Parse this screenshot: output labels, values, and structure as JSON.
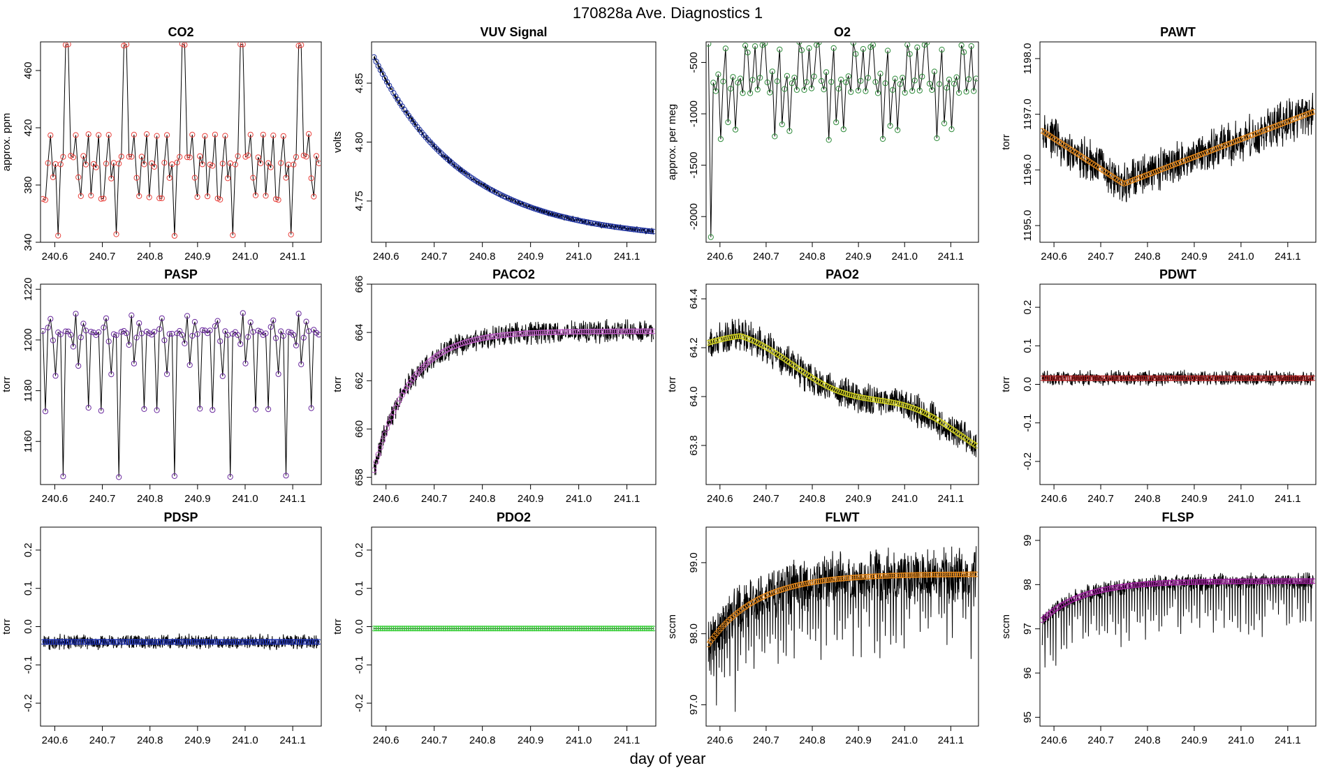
{
  "figure": {
    "title": "170828a   Ave. Diagnostics 1",
    "xlabel": "day of year"
  },
  "chart_data": [
    {
      "type": "line",
      "title": "CO2",
      "ylabel": "approx. ppm",
      "color": "#e8413c",
      "xlim": [
        240.57,
        241.16
      ],
      "ylim": [
        340,
        480
      ],
      "yticks": [
        340,
        380,
        420,
        460
      ],
      "ytick_labels": [
        "340",
        "380",
        "420",
        "460"
      ],
      "xticks": [
        240.6,
        240.7,
        240.8,
        240.9,
        241.0,
        241.1
      ],
      "xtick_labels": [
        "240.6",
        "240.7",
        "240.8",
        "240.9",
        "241.0",
        "241.1"
      ],
      "pattern": "co2"
    },
    {
      "type": "line",
      "title": "VUV Signal",
      "ylabel": "volts",
      "color": "#1a2e9e",
      "xlim": [
        240.57,
        241.16
      ],
      "ylim": [
        4.715,
        4.885
      ],
      "yticks": [
        4.75,
        4.8,
        4.85
      ],
      "ytick_labels": [
        "4.75",
        "4.80",
        "4.85"
      ],
      "xticks": [
        240.6,
        240.7,
        240.8,
        240.9,
        241.0,
        241.1
      ],
      "xtick_labels": [
        "240.6",
        "240.7",
        "240.8",
        "240.9",
        "241.0",
        "241.1"
      ],
      "pattern": "decay",
      "start": 4.872,
      "end": 4.722,
      "noise": 0.003
    },
    {
      "type": "line",
      "title": "O2",
      "ylabel": "approx. per meg",
      "color": "#2e8b3a",
      "xlim": [
        240.57,
        241.16
      ],
      "ylim": [
        -2250,
        -300
      ],
      "yticks": [
        -2000,
        -1500,
        -1000,
        -500
      ],
      "ytick_labels": [
        "-2000",
        "-1500",
        "-1000",
        "-500"
      ],
      "xticks": [
        240.6,
        240.7,
        240.8,
        240.9,
        241.0,
        241.1
      ],
      "xtick_labels": [
        "240.6",
        "240.7",
        "240.8",
        "240.9",
        "241.0",
        "241.1"
      ],
      "pattern": "o2"
    },
    {
      "type": "line",
      "title": "PAWT",
      "ylabel": "torr",
      "color": "#e8891a",
      "xlim": [
        240.57,
        241.16
      ],
      "ylim": [
        1194.7,
        1198.3
      ],
      "yticks": [
        1195.0,
        1196.0,
        1197.0,
        1198.0
      ],
      "ytick_labels": [
        "1195.0",
        "1196.0",
        "1197.0",
        "1198.0"
      ],
      "xticks": [
        240.6,
        240.7,
        240.8,
        240.9,
        241.0,
        241.1
      ],
      "xtick_labels": [
        "240.6",
        "240.7",
        "240.8",
        "240.9",
        "241.0",
        "241.1"
      ],
      "pattern": "pawt",
      "noise": 0.45
    },
    {
      "type": "line",
      "title": "PASP",
      "ylabel": "torr",
      "color": "#6a2a9e",
      "xlim": [
        240.57,
        241.16
      ],
      "ylim": [
        1143,
        1222
      ],
      "yticks": [
        1160,
        1180,
        1200,
        1220
      ],
      "ytick_labels": [
        "1160",
        "1180",
        "1200",
        "1220"
      ],
      "xticks": [
        240.6,
        240.7,
        240.8,
        240.9,
        241.0,
        241.1
      ],
      "xtick_labels": [
        "240.6",
        "240.7",
        "240.8",
        "240.9",
        "241.0",
        "241.1"
      ],
      "pattern": "pasp"
    },
    {
      "type": "line",
      "title": "PACO2",
      "ylabel": "torr",
      "color": "#c060c8",
      "xlim": [
        240.57,
        241.16
      ],
      "ylim": [
        657.7,
        666.0
      ],
      "yticks": [
        658,
        660,
        662,
        664,
        666
      ],
      "ytick_labels": [
        "658",
        "660",
        "662",
        "664",
        "666"
      ],
      "xticks": [
        240.6,
        240.7,
        240.8,
        240.9,
        241.0,
        241.1
      ],
      "xtick_labels": [
        "240.6",
        "240.7",
        "240.8",
        "240.9",
        "241.0",
        "241.1"
      ],
      "pattern": "saturate",
      "start": 658.3,
      "end": 664.05,
      "rate": 14,
      "noise": 0.55
    },
    {
      "type": "line",
      "title": "PAO2",
      "ylabel": "torr",
      "color": "#d8d820",
      "xlim": [
        240.57,
        241.16
      ],
      "ylim": [
        63.64,
        64.46
      ],
      "yticks": [
        63.8,
        64.0,
        64.2,
        64.4
      ],
      "ytick_labels": [
        "63.8",
        "64.0",
        "64.2",
        "64.4"
      ],
      "xticks": [
        240.6,
        240.7,
        240.8,
        240.9,
        241.0,
        241.1
      ],
      "xtick_labels": [
        "240.6",
        "240.7",
        "240.8",
        "240.9",
        "241.0",
        "241.1"
      ],
      "pattern": "pao2",
      "noise": 0.08
    },
    {
      "type": "line",
      "title": "PDWT",
      "ylabel": "torr",
      "color": "#b22222",
      "xlim": [
        240.57,
        241.16
      ],
      "ylim": [
        -0.26,
        0.26
      ],
      "yticks": [
        -0.2,
        -0.1,
        0.0,
        0.1,
        0.2
      ],
      "ytick_labels": [
        "-0.2",
        "-0.1",
        "0.0",
        "0.1",
        "0.2"
      ],
      "xticks": [
        240.6,
        240.7,
        240.8,
        240.9,
        241.0,
        241.1
      ],
      "xtick_labels": [
        "240.6",
        "240.7",
        "240.8",
        "240.9",
        "241.0",
        "241.1"
      ],
      "pattern": "flat",
      "value": 0.016,
      "noise": 0.022
    },
    {
      "type": "line",
      "title": "PDSP",
      "ylabel": "torr",
      "color": "#1c2fb0",
      "xlim": [
        240.57,
        241.16
      ],
      "ylim": [
        -0.26,
        0.26
      ],
      "yticks": [
        -0.2,
        -0.1,
        0.0,
        0.1,
        0.2
      ],
      "ytick_labels": [
        "-0.2",
        "-0.1",
        "0.0",
        "0.1",
        "0.2"
      ],
      "xticks": [
        240.6,
        240.7,
        240.8,
        240.9,
        241.0,
        241.1
      ],
      "xtick_labels": [
        "240.6",
        "240.7",
        "240.8",
        "240.9",
        "241.0",
        "241.1"
      ],
      "pattern": "flat",
      "value": -0.04,
      "noise": 0.022
    },
    {
      "type": "line",
      "title": "PDO2",
      "ylabel": "torr",
      "color": "#33cc33",
      "xlim": [
        240.57,
        241.16
      ],
      "ylim": [
        -0.26,
        0.26
      ],
      "yticks": [
        -0.2,
        -0.1,
        0.0,
        0.1,
        0.2
      ],
      "ytick_labels": [
        "-0.2",
        "-0.1",
        "0.0",
        "0.1",
        "0.2"
      ],
      "xticks": [
        240.6,
        240.7,
        240.8,
        240.9,
        241.0,
        241.1
      ],
      "xtick_labels": [
        "240.6",
        "240.7",
        "240.8",
        "240.9",
        "241.0",
        "241.1"
      ],
      "pattern": "flat",
      "value": -0.005,
      "noise": 0.0
    },
    {
      "type": "line",
      "title": "FLWT",
      "ylabel": "sccm",
      "color": "#e8891a",
      "xlim": [
        240.57,
        241.16
      ],
      "ylim": [
        96.7,
        99.5
      ],
      "yticks": [
        97.0,
        98.0,
        99.0
      ],
      "ytick_labels": [
        "97.0",
        "98.0",
        "99.0"
      ],
      "xticks": [
        240.6,
        240.7,
        240.8,
        240.9,
        241.0,
        241.1
      ],
      "xtick_labels": [
        "240.6",
        "240.7",
        "240.8",
        "240.9",
        "241.0",
        "241.1"
      ],
      "pattern": "saturate",
      "start": 97.85,
      "end": 98.84,
      "rate": 10,
      "noise": 0.42,
      "spikes": 1.0
    },
    {
      "type": "line",
      "title": "FLSP",
      "ylabel": "sccm",
      "color": "#a020a0",
      "xlim": [
        240.57,
        241.16
      ],
      "ylim": [
        94.8,
        99.3
      ],
      "yticks": [
        95,
        96,
        97,
        98,
        99
      ],
      "ytick_labels": [
        "95",
        "96",
        "97",
        "98",
        "99"
      ],
      "xticks": [
        240.6,
        240.7,
        240.8,
        240.9,
        241.0,
        241.1
      ],
      "xtick_labels": [
        "240.6",
        "240.7",
        "240.8",
        "240.9",
        "241.0",
        "241.1"
      ],
      "pattern": "saturate",
      "start": 97.2,
      "end": 98.08,
      "rate": 12,
      "noise": 0.22,
      "spikes": 1.0
    }
  ]
}
